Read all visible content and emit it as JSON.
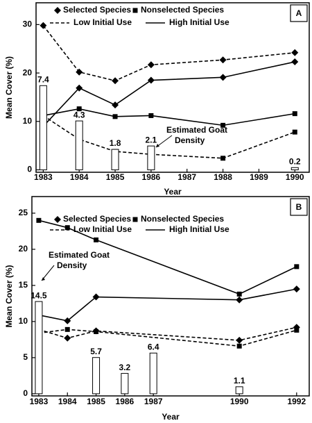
{
  "chart_data": [
    {
      "type": "line",
      "panel_label": "A",
      "ylabel": "Mean Cover (%)",
      "xlabel": "Year",
      "xlim": [
        1982.8,
        1990.4
      ],
      "xticks": [
        1983,
        1984,
        1985,
        1986,
        1987,
        1988,
        1989,
        1990
      ],
      "ylim": [
        -0.5,
        34.5
      ],
      "yticks": [
        0,
        10,
        20,
        30
      ],
      "y2lim": [
        -0.21,
        14.68
      ],
      "legend": [
        {
          "label": "Selected Species",
          "marker": "diamond"
        },
        {
          "label": "Nonselected Species",
          "marker": "square"
        },
        {
          "label": "Low Initial Use",
          "line": "dashed"
        },
        {
          "label": "High Initial Use",
          "line": "solid"
        }
      ],
      "annotation": [
        "Estimated Goat",
        "Density"
      ],
      "series": [
        {
          "type": "line",
          "marker": "diamond",
          "line": "dashed",
          "color": "#000000",
          "x": [
            1983,
            1984,
            1985,
            1986,
            1988,
            1990
          ],
          "values": [
            29.8,
            20.2,
            18.4,
            21.7,
            22.7,
            24.2
          ]
        },
        {
          "type": "line",
          "marker": "diamond",
          "line": "solid",
          "color": "#000000",
          "x": [
            1983,
            1984,
            1985,
            1986,
            1988,
            1990
          ],
          "values": [
            9,
            16.9,
            13.4,
            18.5,
            19.1,
            22.3
          ]
        },
        {
          "type": "line",
          "marker": "square",
          "line": "solid",
          "color": "#000000",
          "x": [
            1983,
            1984,
            1985,
            1986,
            1988,
            1990
          ],
          "values": [
            11.2,
            12.6,
            11,
            11.2,
            9.2,
            11.6
          ]
        },
        {
          "type": "line",
          "marker": "square",
          "line": "dashed",
          "color": "#000000",
          "x": [
            1983,
            1984,
            1985,
            1986,
            1988,
            1990
          ],
          "values": [
            11.2,
            6.3,
            3.8,
            3.2,
            2.4,
            7.8
          ]
        },
        {
          "type": "bar",
          "axis": "y2",
          "color": "#ffffff",
          "x": [
            1983,
            1984,
            1985,
            1986,
            1990
          ],
          "values": [
            7.4,
            4.3,
            1.8,
            2.1,
            0.2
          ]
        }
      ]
    },
    {
      "type": "line",
      "panel_label": "B",
      "ylabel": "Mean Cover (%)",
      "xlabel": "Year",
      "xlim": [
        1982.76,
        1992.44
      ],
      "xticks": [
        1983,
        1984,
        1985,
        1986,
        1987,
        1990,
        1992
      ],
      "ylim": [
        -0.3,
        27.3
      ],
      "yticks": [
        0,
        5,
        10,
        15,
        20,
        25
      ],
      "y2lim": [
        -0.34,
        31.0
      ],
      "legend": [
        {
          "label": "Selected Species",
          "marker": "diamond"
        },
        {
          "label": "Nonselected Species",
          "marker": "square"
        },
        {
          "label": "Low Initial Use",
          "line": "dashed"
        },
        {
          "label": "High Initial Use",
          "line": "solid"
        }
      ],
      "annotation": [
        "Estimated Goat",
        "Density"
      ],
      "series": [
        {
          "type": "line",
          "marker": "square",
          "line": "solid",
          "color": "#000000",
          "x": [
            1983,
            1984,
            1985,
            1990,
            1992
          ],
          "values": [
            24,
            23,
            21.3,
            13.8,
            17.6
          ]
        },
        {
          "type": "line",
          "marker": "diamond",
          "line": "solid",
          "color": "#000000",
          "x": [
            1983,
            1984,
            1985,
            1990,
            1992
          ],
          "values": [
            10.9,
            10.1,
            13.4,
            13,
            14.5
          ]
        },
        {
          "type": "line",
          "marker": "diamond",
          "line": "dashed",
          "color": "#000000",
          "x": [
            1983,
            1984,
            1985,
            1990,
            1992
          ],
          "values": [
            8.9,
            7.7,
            8.7,
            7.4,
            9.2
          ]
        },
        {
          "type": "line",
          "marker": "square",
          "line": "dashed",
          "color": "#000000",
          "x": [
            1983,
            1984,
            1985,
            1990,
            1992
          ],
          "values": [
            8.4,
            8.9,
            8.6,
            6.6,
            8.8
          ]
        },
        {
          "type": "bar",
          "axis": "y2",
          "color": "#ffffff",
          "x": [
            1983,
            1985,
            1986,
            1987,
            1990
          ],
          "values": [
            14.5,
            5.7,
            3.2,
            6.4,
            1.1
          ]
        }
      ]
    }
  ]
}
